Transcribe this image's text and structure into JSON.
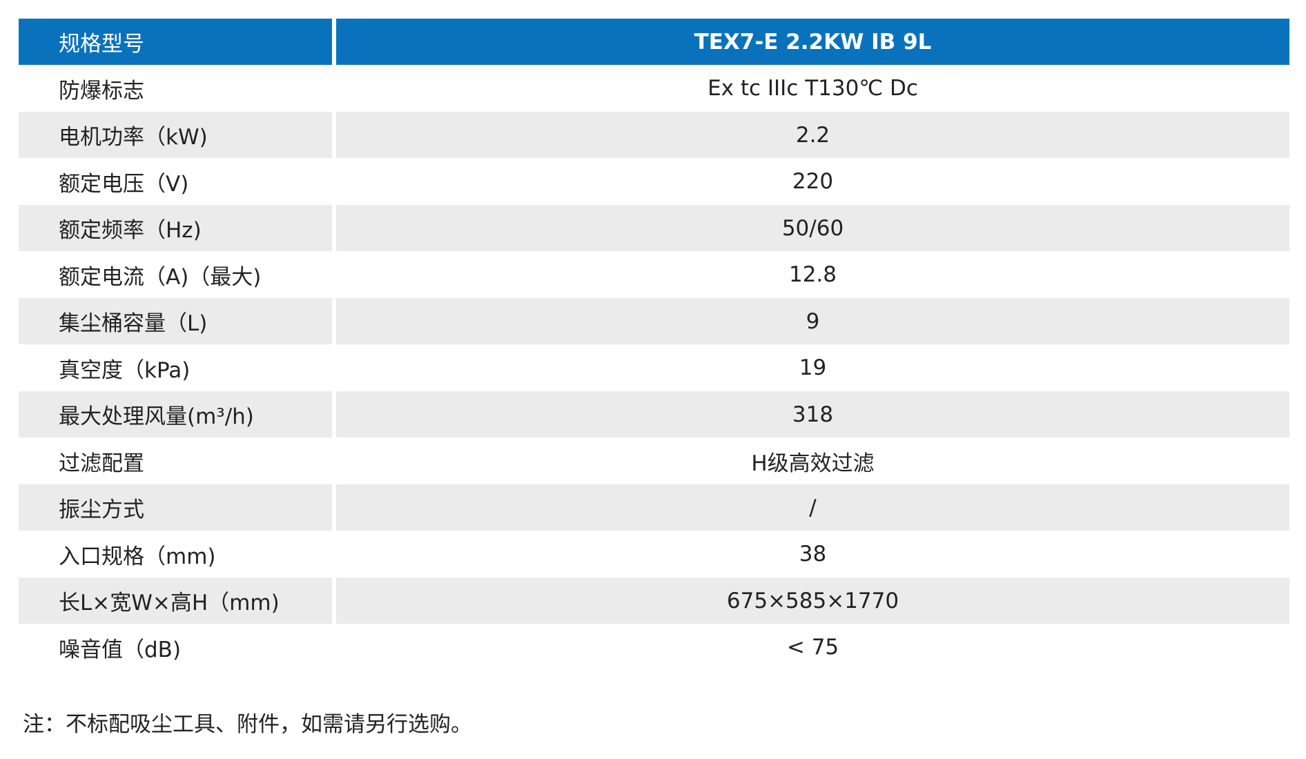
{
  "table": {
    "header": [
      "规格型号",
      "TEX7-E 2.2KW IB 9L"
    ],
    "rows": [
      [
        "防爆标志",
        "Ex tc IIIc T130℃ Dc"
      ],
      [
        "电机功率（kW)",
        "2.2"
      ],
      [
        "额定电压（V)",
        "220"
      ],
      [
        "额定频率（Hz)",
        "50/60"
      ],
      [
        "额定电流（A)（最大)",
        "12.8"
      ],
      [
        "集尘桶容量（L)",
        "9"
      ],
      [
        "真空度（kPa)",
        "19"
      ],
      [
        "最大处理风量(m³/h)",
        "318"
      ],
      [
        "过滤配置",
        "H级高效过滤"
      ],
      [
        "振尘方式",
        "/"
      ],
      [
        "入口规格（mm)",
        "38"
      ],
      [
        "长L×宽W×高H（mm)",
        "675×585×1770"
      ],
      [
        "噪音值（dB)",
        "< 75"
      ]
    ]
  },
  "note": "注：不标配吸尘工具、附件，如需请另行选购。"
}
